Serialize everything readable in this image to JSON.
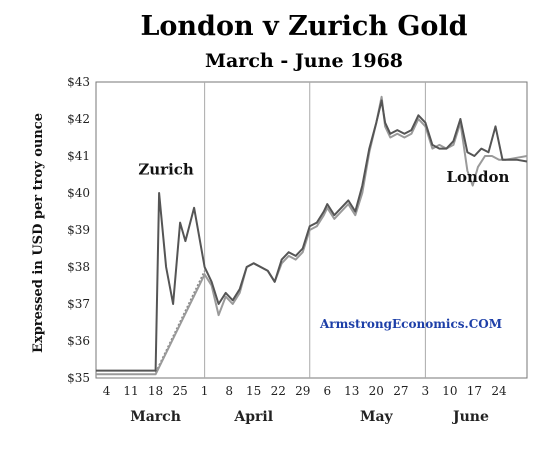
{
  "chart_data": {
    "type": "line",
    "title": "London v Zurich Gold",
    "subtitle": "March - June 1968",
    "ylabel": "Expressed in USD per troy ounce",
    "ylim": [
      35,
      43
    ],
    "yticks": [
      "$35",
      "$36",
      "$37",
      "$38",
      "$39",
      "$40",
      "$41",
      "$42",
      "$43"
    ],
    "xlim": [
      0,
      123
    ],
    "xticks": [
      {
        "pos": 3,
        "label": "4"
      },
      {
        "pos": 10,
        "label": "11"
      },
      {
        "pos": 17,
        "label": "18"
      },
      {
        "pos": 24,
        "label": "25"
      },
      {
        "pos": 31,
        "label": "1"
      },
      {
        "pos": 38,
        "label": "8"
      },
      {
        "pos": 45,
        "label": "15"
      },
      {
        "pos": 52,
        "label": "22"
      },
      {
        "pos": 59,
        "label": "29"
      },
      {
        "pos": 66,
        "label": "6"
      },
      {
        "pos": 73,
        "label": "13"
      },
      {
        "pos": 80,
        "label": "20"
      },
      {
        "pos": 87,
        "label": "27"
      },
      {
        "pos": 94,
        "label": "3"
      },
      {
        "pos": 101,
        "label": "10"
      },
      {
        "pos": 108,
        "label": "17"
      },
      {
        "pos": 115,
        "label": "24"
      }
    ],
    "months": [
      {
        "pos": 17,
        "label": "March"
      },
      {
        "pos": 45,
        "label": "April"
      },
      {
        "pos": 80,
        "label": "May"
      },
      {
        "pos": 107,
        "label": "June"
      }
    ],
    "vlines": [
      31,
      61,
      94
    ],
    "series": [
      {
        "name": "Zurich",
        "color": "#555555",
        "points": [
          [
            0,
            35.2
          ],
          [
            17,
            35.2
          ],
          [
            18,
            40.0
          ],
          [
            20,
            38.0
          ],
          [
            22,
            37.0
          ],
          [
            24,
            39.2
          ],
          [
            25.5,
            38.7
          ],
          [
            28,
            39.6
          ],
          [
            31,
            38.0
          ],
          [
            33,
            37.6
          ],
          [
            35,
            37.0
          ],
          [
            37,
            37.3
          ],
          [
            39,
            37.1
          ],
          [
            41,
            37.4
          ],
          [
            43,
            38.0
          ],
          [
            45,
            38.1
          ],
          [
            47,
            38.0
          ],
          [
            49,
            37.9
          ],
          [
            51,
            37.6
          ],
          [
            53,
            38.2
          ],
          [
            55,
            38.4
          ],
          [
            57,
            38.3
          ],
          [
            59,
            38.5
          ],
          [
            61,
            39.1
          ],
          [
            63,
            39.2
          ],
          [
            65,
            39.5
          ],
          [
            66,
            39.7
          ],
          [
            68,
            39.4
          ],
          [
            70,
            39.6
          ],
          [
            72,
            39.8
          ],
          [
            74,
            39.5
          ],
          [
            76,
            40.2
          ],
          [
            78,
            41.2
          ],
          [
            80,
            41.9
          ],
          [
            81.5,
            42.5
          ],
          [
            82.5,
            41.9
          ],
          [
            84,
            41.6
          ],
          [
            86,
            41.7
          ],
          [
            88,
            41.6
          ],
          [
            90,
            41.7
          ],
          [
            92,
            42.1
          ],
          [
            94,
            41.9
          ],
          [
            96,
            41.3
          ],
          [
            98,
            41.2
          ],
          [
            100,
            41.2
          ],
          [
            102,
            41.4
          ],
          [
            104,
            42.0
          ],
          [
            106,
            41.1
          ],
          [
            108,
            41.0
          ],
          [
            110,
            41.2
          ],
          [
            112,
            41.1
          ],
          [
            114,
            41.8
          ],
          [
            116,
            40.9
          ],
          [
            118,
            40.9
          ],
          [
            120,
            40.9
          ],
          [
            123,
            40.85
          ]
        ]
      },
      {
        "name": "London",
        "color": "#9a9a9a",
        "points": [
          [
            0,
            35.1
          ],
          [
            17,
            35.1
          ],
          [
            31,
            37.8
          ],
          [
            33,
            37.5
          ],
          [
            35,
            36.7
          ],
          [
            37,
            37.2
          ],
          [
            39,
            37.0
          ],
          [
            41,
            37.3
          ],
          [
            43,
            38.0
          ],
          [
            45,
            38.1
          ],
          [
            47,
            38.0
          ],
          [
            49,
            37.9
          ],
          [
            51,
            37.6
          ],
          [
            53,
            38.1
          ],
          [
            55,
            38.3
          ],
          [
            57,
            38.2
          ],
          [
            59,
            38.4
          ],
          [
            61,
            39.0
          ],
          [
            63,
            39.1
          ],
          [
            65,
            39.4
          ],
          [
            66,
            39.6
          ],
          [
            68,
            39.3
          ],
          [
            70,
            39.5
          ],
          [
            72,
            39.7
          ],
          [
            74,
            39.4
          ],
          [
            76,
            40.0
          ],
          [
            78,
            41.1
          ],
          [
            80,
            41.9
          ],
          [
            81.5,
            42.6
          ],
          [
            82.5,
            41.8
          ],
          [
            84,
            41.5
          ],
          [
            86,
            41.6
          ],
          [
            88,
            41.5
          ],
          [
            90,
            41.6
          ],
          [
            92,
            42.0
          ],
          [
            94,
            41.8
          ],
          [
            96,
            41.2
          ],
          [
            98,
            41.3
          ],
          [
            100,
            41.2
          ],
          [
            102,
            41.3
          ],
          [
            104,
            41.9
          ],
          [
            106,
            40.6
          ],
          [
            107.5,
            40.2
          ],
          [
            109,
            40.7
          ],
          [
            111,
            41.0
          ],
          [
            113,
            41.0
          ],
          [
            115,
            40.9
          ],
          [
            117,
            40.9
          ],
          [
            120,
            40.95
          ],
          [
            123,
            41.0
          ]
        ]
      }
    ],
    "dashed_segment": [
      [
        17,
        35.15
      ],
      [
        31,
        37.9
      ]
    ],
    "annotations": [
      {
        "text": "Zurich",
        "x": 20,
        "y": 40.5
      },
      {
        "text": "London",
        "x": 109,
        "y": 40.3
      }
    ],
    "watermark": "ArmstrongEconomics.COM"
  }
}
